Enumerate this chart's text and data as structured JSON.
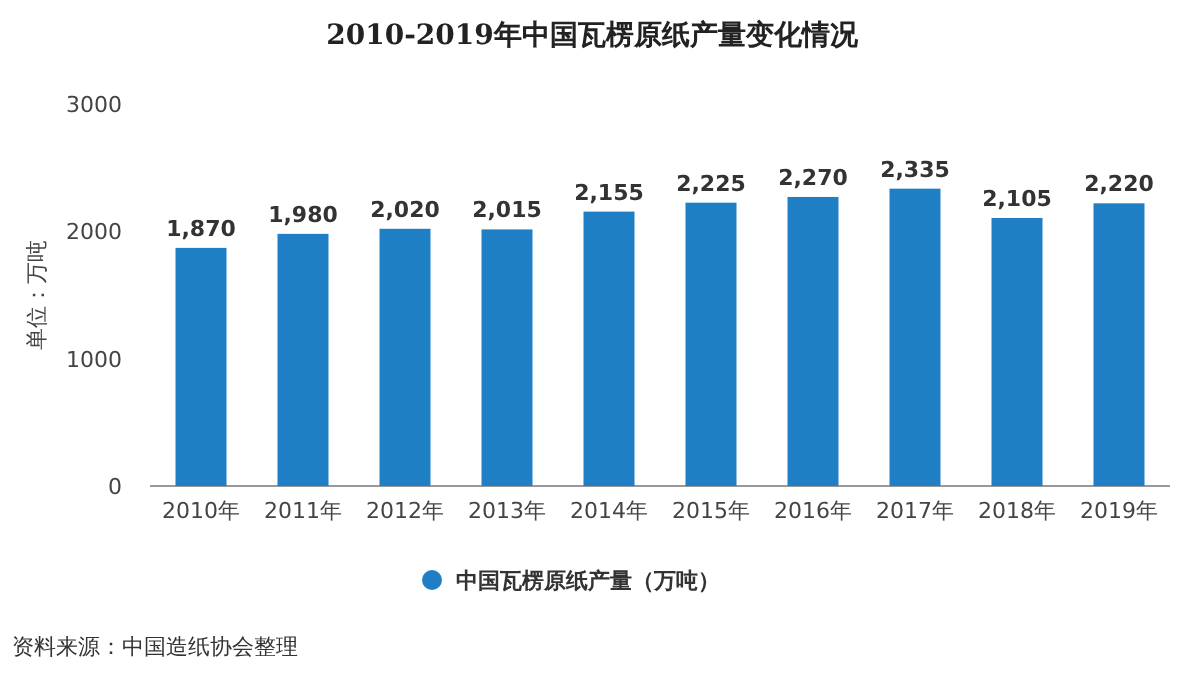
{
  "chart_data": {
    "type": "bar",
    "title": "2010-2019年中国瓦楞原纸产量变化情况",
    "ylabel": "单位：万吨",
    "categories": [
      "2010年",
      "2011年",
      "2012年",
      "2013年",
      "2014年",
      "2015年",
      "2016年",
      "2017年",
      "2018年",
      "2019年"
    ],
    "series": [
      {
        "name": "中国瓦楞原纸产量（万吨）",
        "color": "#1f7fc4",
        "values": [
          1870,
          1980,
          2020,
          2015,
          2155,
          2225,
          2270,
          2335,
          2105,
          2220
        ],
        "value_labels": [
          "1,870",
          "1,980",
          "2,020",
          "2,015",
          "2,155",
          "2,225",
          "2,270",
          "2,335",
          "2,105",
          "2,220"
        ]
      }
    ],
    "ylim": [
      0,
      3000
    ],
    "yticks": [
      0,
      1000,
      2000,
      3000
    ],
    "grid": false,
    "legend": "bottom",
    "annotations": [
      "资料来源：中国造纸协会整理"
    ]
  }
}
